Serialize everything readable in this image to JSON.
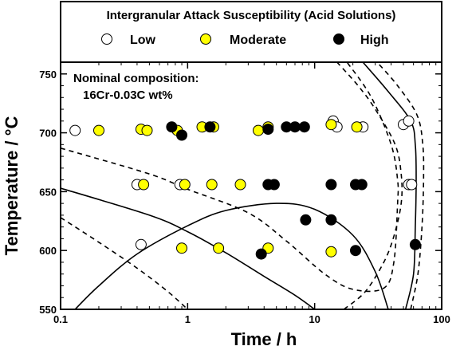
{
  "chart_data": {
    "type": "scatter",
    "title": "",
    "xlabel": "Time / h",
    "ylabel": "Temperature / °C",
    "x_scale": "log",
    "xlim": [
      0.1,
      100
    ],
    "ylim": [
      550,
      760
    ],
    "x_ticks": [
      0.1,
      1,
      10,
      100
    ],
    "x_tick_labels": [
      "0.1",
      "1",
      "10",
      "100"
    ],
    "y_ticks": [
      550,
      600,
      650,
      700,
      750
    ],
    "y_tick_labels": [
      "550",
      "600",
      "650",
      "700",
      "750"
    ],
    "legend": {
      "title": "Intergranular Attack Susceptibility (Acid Solutions)",
      "placement": "top, outside plot box",
      "entries": [
        {
          "label": "Low",
          "color": "#ffffff"
        },
        {
          "label": "Moderate",
          "color": "#ffff00"
        },
        {
          "label": "High",
          "color": "#000000"
        }
      ]
    },
    "annotation": [
      "Nominal composition:",
      "16Cr-0.03C wt%"
    ],
    "series": [
      {
        "name": "Low",
        "color": "#ffffff",
        "points": [
          [
            0.13,
            702
          ],
          [
            0.4,
            656
          ],
          [
            0.43,
            605
          ],
          [
            0.87,
            656
          ],
          [
            14,
            710
          ],
          [
            15,
            705
          ],
          [
            24,
            705
          ],
          [
            50,
            707
          ],
          [
            55,
            710
          ],
          [
            55,
            656
          ],
          [
            58,
            656
          ]
        ]
      },
      {
        "name": "Moderate",
        "color": "#ffff00",
        "points": [
          [
            0.2,
            702
          ],
          [
            0.43,
            703
          ],
          [
            0.48,
            702
          ],
          [
            0.45,
            656
          ],
          [
            0.83,
            702
          ],
          [
            0.95,
            656
          ],
          [
            0.9,
            602
          ],
          [
            1.3,
            705
          ],
          [
            1.6,
            705
          ],
          [
            1.55,
            656
          ],
          [
            1.75,
            602
          ],
          [
            2.6,
            656
          ],
          [
            3.6,
            702
          ],
          [
            4.3,
            705
          ],
          [
            4.3,
            602
          ],
          [
            13.5,
            707
          ],
          [
            13.5,
            599
          ],
          [
            21.5,
            705
          ]
        ]
      },
      {
        "name": "High",
        "color": "#000000",
        "points": [
          [
            0.75,
            705
          ],
          [
            0.9,
            698
          ],
          [
            1.5,
            705
          ],
          [
            4.3,
            703
          ],
          [
            6,
            705
          ],
          [
            7,
            705
          ],
          [
            8.3,
            705
          ],
          [
            4.3,
            656
          ],
          [
            4.8,
            656
          ],
          [
            13.5,
            656
          ],
          [
            21,
            656
          ],
          [
            23.5,
            656
          ],
          [
            3.8,
            597
          ],
          [
            8.5,
            626
          ],
          [
            13.5,
            626
          ],
          [
            21,
            600
          ],
          [
            62,
            605
          ]
        ]
      }
    ],
    "curves": [
      {
        "style": "dashed",
        "points": [
          [
            0.1,
            687
          ],
          [
            0.5,
            665
          ],
          [
            1,
            652
          ],
          [
            3,
            632
          ],
          [
            6,
            608
          ],
          [
            12,
            580
          ],
          [
            20,
            567
          ],
          [
            35,
            568
          ],
          [
            42,
            590
          ],
          [
            45,
            640
          ],
          [
            45,
            660
          ],
          [
            40,
            690
          ],
          [
            28,
            730
          ],
          [
            18,
            760
          ]
        ]
      },
      {
        "style": "solid",
        "points": [
          [
            0.1,
            653
          ],
          [
            0.5,
            630
          ],
          [
            1,
            616
          ],
          [
            2,
            598
          ],
          [
            4,
            578
          ],
          [
            7,
            562
          ],
          [
            10,
            550
          ]
        ]
      },
      {
        "style": "dashed",
        "points": [
          [
            0.1,
            628
          ],
          [
            0.2,
            607
          ],
          [
            0.4,
            585
          ],
          [
            0.7,
            565
          ],
          [
            1,
            550
          ]
        ]
      },
      {
        "style": "solid",
        "points": [
          [
            0.13,
            550
          ],
          [
            0.2,
            570
          ],
          [
            0.4,
            597
          ],
          [
            1,
            621
          ],
          [
            2,
            634
          ],
          [
            5,
            640
          ],
          [
            10,
            635
          ],
          [
            20,
            613
          ],
          [
            30,
            582
          ],
          [
            38,
            550
          ]
        ]
      },
      {
        "style": "dashed",
        "points": [
          [
            17,
            550
          ],
          [
            25,
            565
          ],
          [
            35,
            590
          ],
          [
            42,
            612
          ],
          [
            48,
            640
          ],
          [
            48,
            665
          ],
          [
            43,
            690
          ],
          [
            30,
            720
          ],
          [
            22,
            740
          ],
          [
            15,
            760
          ]
        ]
      },
      {
        "style": "solid",
        "points": [
          [
            52,
            550
          ],
          [
            60,
            580
          ],
          [
            62,
            620
          ],
          [
            63,
            660
          ],
          [
            62,
            690
          ],
          [
            57,
            710
          ],
          [
            38,
            735
          ],
          [
            24,
            760
          ]
        ]
      },
      {
        "style": "dashed",
        "points": [
          [
            57,
            550
          ],
          [
            65,
            580
          ],
          [
            70,
            620
          ],
          [
            72,
            660
          ],
          [
            71,
            690
          ],
          [
            64,
            715
          ],
          [
            45,
            740
          ],
          [
            31,
            760
          ]
        ]
      }
    ]
  }
}
